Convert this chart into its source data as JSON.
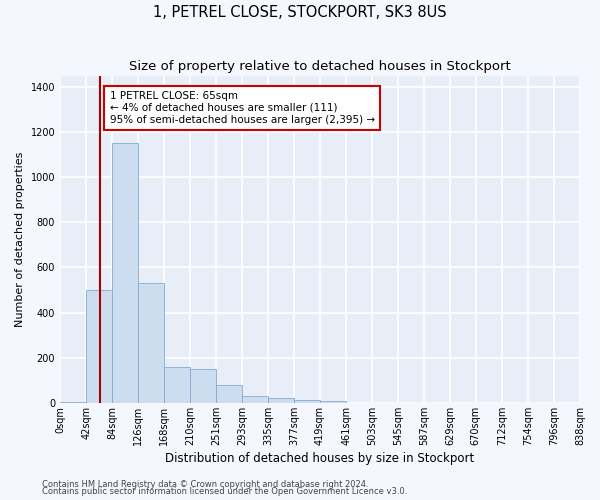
{
  "title": "1, PETREL CLOSE, STOCKPORT, SK3 8US",
  "subtitle": "Size of property relative to detached houses in Stockport",
  "xlabel": "Distribution of detached houses by size in Stockport",
  "ylabel": "Number of detached properties",
  "bin_edges": [
    0,
    42,
    84,
    126,
    168,
    210,
    251,
    293,
    335,
    377,
    419,
    461,
    503,
    545,
    587,
    629,
    670,
    712,
    754,
    796,
    838
  ],
  "bar_values": [
    5,
    500,
    1150,
    530,
    160,
    150,
    80,
    30,
    22,
    15,
    10,
    0,
    0,
    0,
    0,
    0,
    0,
    0,
    0,
    0
  ],
  "bar_color": "#ccddf0",
  "bar_edge_color": "#88aacc",
  "property_line_x": 65,
  "property_line_color": "#aa0000",
  "annotation_text": "1 PETREL CLOSE: 65sqm\n← 4% of detached houses are smaller (111)\n95% of semi-detached houses are larger (2,395) →",
  "annotation_box_facecolor": "#ffffff",
  "annotation_box_edgecolor": "#cc0000",
  "ylim": [
    0,
    1450
  ],
  "yticks": [
    0,
    200,
    400,
    600,
    800,
    1000,
    1200,
    1400
  ],
  "plot_bg_color": "#e8eef8",
  "grid_color": "#ffffff",
  "footer_line1": "Contains HM Land Registry data © Crown copyright and database right 2024.",
  "footer_line2": "Contains public sector information licensed under the Open Government Licence v3.0.",
  "title_fontsize": 10.5,
  "subtitle_fontsize": 9.5,
  "ylabel_fontsize": 8,
  "xlabel_fontsize": 8.5,
  "tick_fontsize": 7,
  "annotation_fontsize": 7.5,
  "footer_fontsize": 6
}
